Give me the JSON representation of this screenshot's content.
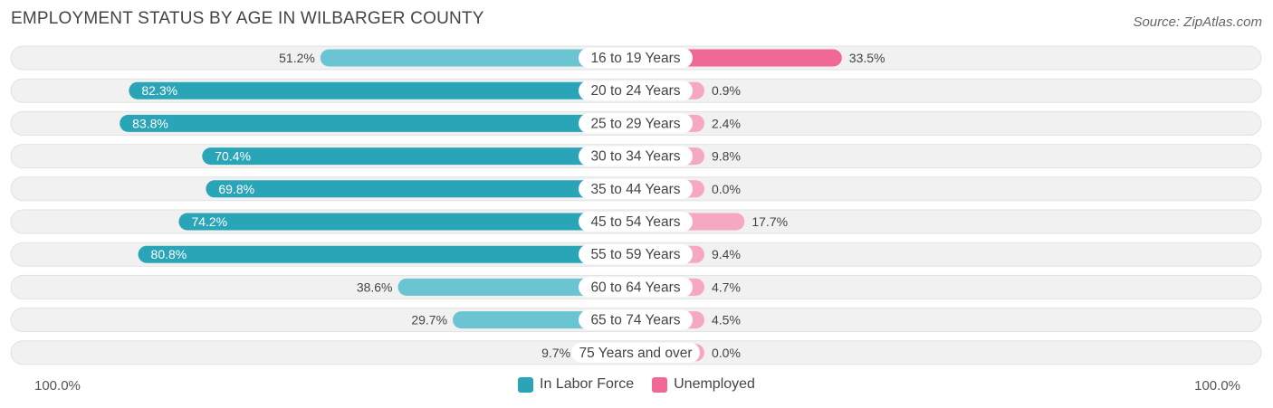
{
  "title": "EMPLOYMENT STATUS BY AGE IN WILBARGER COUNTY",
  "source": "Source: ZipAtlas.com",
  "colors": {
    "labor_dark": "#2aa5b8",
    "labor_light": "#6ac4d1",
    "unemp_dark": "#f06896",
    "unemp_light": "#f6a7c1",
    "row_bg": "#f1f1f1"
  },
  "chart_data": {
    "type": "bar",
    "orientation": "diverging-horizontal",
    "title": "EMPLOYMENT STATUS BY AGE IN WILBARGER COUNTY",
    "categories": [
      "16 to 19 Years",
      "20 to 24 Years",
      "25 to 29 Years",
      "30 to 34 Years",
      "35 to 44 Years",
      "45 to 54 Years",
      "55 to 59 Years",
      "60 to 64 Years",
      "65 to 74 Years",
      "75 Years and over"
    ],
    "series": [
      {
        "name": "In Labor Force",
        "values": [
          51.2,
          82.3,
          83.8,
          70.4,
          69.8,
          74.2,
          80.8,
          38.6,
          29.7,
          9.7
        ]
      },
      {
        "name": "Unemployed",
        "values": [
          33.5,
          0.9,
          2.4,
          9.8,
          0.0,
          17.7,
          9.4,
          4.7,
          4.5,
          0.0
        ]
      }
    ],
    "value_labels": {
      "labor": [
        "51.2%",
        "82.3%",
        "83.8%",
        "70.4%",
        "69.8%",
        "74.2%",
        "80.8%",
        "38.6%",
        "29.7%",
        "9.7%"
      ],
      "unemployed": [
        "33.5%",
        "0.9%",
        "2.4%",
        "9.8%",
        "0.0%",
        "17.7%",
        "9.4%",
        "4.7%",
        "4.5%",
        "0.0%"
      ]
    },
    "xlim": [
      -100,
      100
    ],
    "axis_left_label": "100.0%",
    "axis_right_label": "100.0%",
    "legend": [
      "In Labor Force",
      "Unemployed"
    ],
    "legend_position": "bottom-center"
  }
}
